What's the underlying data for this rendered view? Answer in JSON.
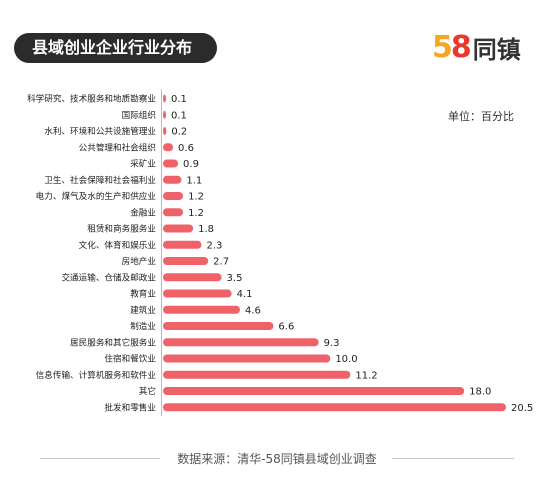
{
  "header": {
    "title": "县域创业企业行业分布",
    "logo_number": "58",
    "logo_text": "同镇"
  },
  "unit_label": "单位：百分比",
  "footer": {
    "source": "数据来源：清华-58同镇县域创业调查"
  },
  "colors": {
    "bar": "#f0626a",
    "title_bg": "#2b2b2b",
    "logo_5": "#f5a623",
    "logo_8": "#e8392f"
  },
  "chart_data": {
    "type": "bar",
    "orientation": "horizontal",
    "title": "县域创业企业行业分布",
    "unit": "单位：百分比",
    "categories": [
      "科学研究、技术服务和地质勘察业",
      "国际组织",
      "水利、环境和公共设施管理业",
      "公共管理和社会组织",
      "采矿业",
      "卫生、社会保障和社会福利业",
      "电力、煤气及水的生产和供应业",
      "金融业",
      "租赁和商务服务业",
      "文化、体育和娱乐业",
      "房地产业",
      "交通运输、仓储及邮政业",
      "教育业",
      "建筑业",
      "制造业",
      "居民服务和其它服务业",
      "住宿和餐饮业",
      "信息传输、计算机服务和软件业",
      "其它",
      "批发和零售业"
    ],
    "values": [
      0.1,
      0.1,
      0.2,
      0.6,
      0.9,
      1.1,
      1.2,
      1.2,
      1.8,
      2.3,
      2.7,
      3.5,
      4.1,
      4.6,
      6.6,
      9.3,
      10.0,
      11.2,
      18.0,
      20.5
    ],
    "value_labels": [
      "0.1",
      "0.1",
      "0.2",
      "0.6",
      "0.9",
      "1.1",
      "1.2",
      "1.2",
      "1.8",
      "2.3",
      "2.7",
      "3.5",
      "4.1",
      "4.6",
      "6.6",
      "9.3",
      "10.0",
      "11.2",
      "18.0",
      "20.5"
    ],
    "xlim": [
      0,
      20.5
    ],
    "grid": false,
    "legend": "none"
  }
}
